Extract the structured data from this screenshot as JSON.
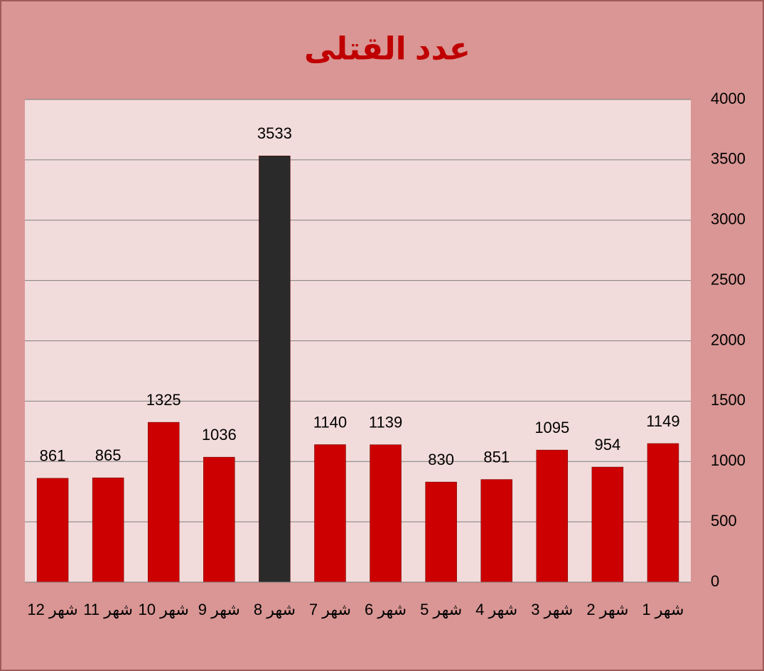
{
  "chart_data": {
    "type": "bar",
    "title": "عدد القتلى",
    "categories": [
      "شهر 1",
      "شهر 2",
      "شهر 3",
      "شهر 4",
      "شهر 5",
      "شهر 6",
      "شهر 7",
      "شهر 8",
      "شهر 9",
      "شهر 10",
      "شهر 11",
      "شهر 12"
    ],
    "values": [
      1149,
      954,
      1095,
      851,
      830,
      1139,
      1140,
      3533,
      1036,
      1325,
      865,
      861
    ],
    "colors": [
      "#cc0000",
      "#cc0000",
      "#cc0000",
      "#cc0000",
      "#cc0000",
      "#cc0000",
      "#cc0000",
      "#2a2a2a",
      "#cc0000",
      "#cc0000",
      "#cc0000",
      "#cc0000"
    ],
    "ylim": [
      0,
      4000
    ],
    "yticks": [
      0,
      500,
      1000,
      1500,
      2000,
      2500,
      3000,
      3500,
      4000
    ],
    "grid": true,
    "x_reversed": true,
    "y_axis_side": "right"
  }
}
